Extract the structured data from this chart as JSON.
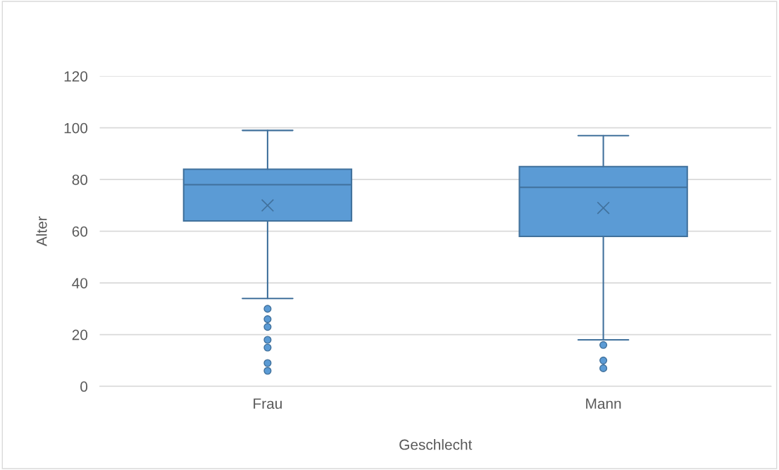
{
  "chart_data": {
    "type": "box",
    "xlabel": "Geschlecht",
    "ylabel": "Alter",
    "categories": [
      "Frau",
      "Mann"
    ],
    "boxes": [
      {
        "low": 34,
        "q1": 64,
        "median": 78,
        "q3": 84,
        "high": 99,
        "mean": 70,
        "outliers": [
          30,
          26,
          23,
          18,
          15,
          9,
          6
        ]
      },
      {
        "low": 18,
        "q1": 58,
        "median": 77,
        "q3": 85,
        "high": 97,
        "mean": 69,
        "outliers": [
          16,
          10,
          7
        ]
      }
    ],
    "color": "#5b9bd5",
    "ylim": [
      0,
      120
    ],
    "yticks": [
      0,
      20,
      40,
      60,
      80,
      100,
      120
    ],
    "grid": "y",
    "legend": false
  }
}
